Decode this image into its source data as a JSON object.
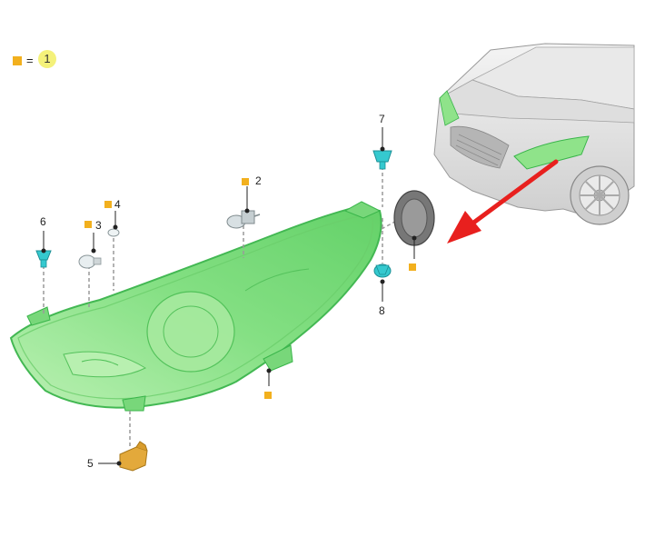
{
  "legend": {
    "symbol": "orange-square",
    "equals": "=",
    "value": "1",
    "key_color": "#f2b01e",
    "badge_color": "#f4f17a"
  },
  "callouts": [
    {
      "id": "1",
      "marker": true
    },
    {
      "id": "2",
      "marker": true
    },
    {
      "id": "3",
      "marker": true
    },
    {
      "id": "4",
      "marker": true
    },
    {
      "id": "5",
      "marker": false
    },
    {
      "id": "6",
      "marker": false
    },
    {
      "id": "7",
      "marker": false
    },
    {
      "id": "8",
      "marker": false
    }
  ],
  "colors": {
    "headlamp_fill": "#8fe38a",
    "headlamp_stroke": "#39b54a",
    "fastener": "#35c9cf",
    "bracket": "#e3a93b",
    "marker": "#f2b01e",
    "arrow": "#e8201e"
  }
}
